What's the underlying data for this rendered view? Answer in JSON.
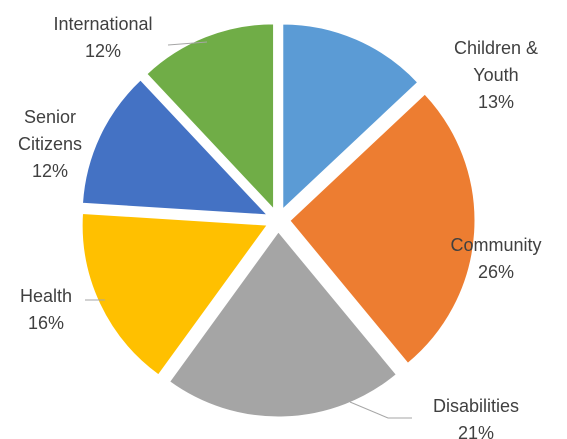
{
  "chart_data": {
    "type": "pie",
    "title": "",
    "exploded": true,
    "legend": "none",
    "start": "top",
    "direction": "clockwise",
    "slices": [
      {
        "name": "Children & Youth",
        "name_lines": [
          "Children &",
          "Youth"
        ],
        "value": 13,
        "label": "13%",
        "color": "#5b9bd5"
      },
      {
        "name": "Community",
        "name_lines": [
          "Community"
        ],
        "value": 26,
        "label": "26%",
        "color": "#ed7d31"
      },
      {
        "name": "Disabilities",
        "name_lines": [
          "Disabilities"
        ],
        "value": 21,
        "label": "21%",
        "color": "#a5a5a5"
      },
      {
        "name": "Health",
        "name_lines": [
          "Health"
        ],
        "value": 16,
        "label": "16%",
        "color": "#ffc000"
      },
      {
        "name": "Senior Citizens",
        "name_lines": [
          "Senior",
          "Citizens"
        ],
        "value": 12,
        "label": "12%",
        "color": "#4472c4"
      },
      {
        "name": "International",
        "name_lines": [
          "International"
        ],
        "value": 12,
        "label": "12%",
        "color": "#70ad47"
      }
    ]
  }
}
